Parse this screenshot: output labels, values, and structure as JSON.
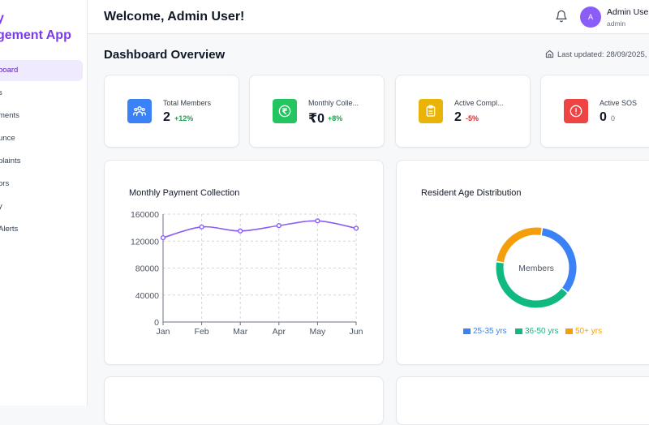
{
  "sidebar": {
    "brand_line1": "y",
    "brand_line2": "gement App",
    "items": [
      {
        "label": "board",
        "active": true
      },
      {
        "label": "s",
        "active": false
      },
      {
        "label": "ments",
        "active": false
      },
      {
        "label": "unce",
        "active": false
      },
      {
        "label": "plaints",
        "active": false
      },
      {
        "label": "ors",
        "active": false
      },
      {
        "label": "y",
        "active": false
      },
      {
        "label": "Alerts",
        "active": false
      }
    ]
  },
  "header": {
    "welcome": "Welcome, Admin User!",
    "avatar_initial": "A",
    "user_name": "Admin User",
    "user_role": "admin"
  },
  "dashboard": {
    "title": "Dashboard Overview",
    "last_updated": "Last updated: 28/09/2025,"
  },
  "stats": [
    {
      "label": "Total Members",
      "value": "2",
      "change": "+12%",
      "icon": "users-icon",
      "color": "#3b82f6",
      "change_color": "#16a34a"
    },
    {
      "label": "Monthly Colle...",
      "value": "₹0",
      "change": "+8%",
      "icon": "rupee-icon",
      "color": "#22c55e",
      "change_color": "#16a34a"
    },
    {
      "label": "Active Compl...",
      "value": "2",
      "change": "-5%",
      "icon": "clipboard-icon",
      "color": "#eab308",
      "change_color": "#dc2626"
    },
    {
      "label": "Active SOS",
      "value": "0",
      "change": "0",
      "icon": "alert-circle-icon",
      "color": "#ef4444",
      "change_color": "#6b7280"
    }
  ],
  "chart_data": [
    {
      "type": "line",
      "title": "Monthly Payment Collection",
      "categories": [
        "Jan",
        "Feb",
        "Mar",
        "Apr",
        "May",
        "Jun"
      ],
      "values": [
        125000,
        141000,
        135000,
        143000,
        150000,
        139000
      ],
      "ylim": [
        0,
        160000
      ],
      "yticks": [
        0,
        40000,
        80000,
        120000,
        160000
      ],
      "grid": true,
      "color": "#8b5cf6"
    },
    {
      "type": "pie",
      "title": "Resident Age Distribution",
      "center_label": "Members",
      "categories": [
        "25-35 yrs",
        "36-50 yrs",
        "50+ yrs"
      ],
      "values": [
        33.3,
        41.7,
        25.0
      ],
      "colors": [
        "#3b82f6",
        "#10b981",
        "#f59e0b"
      ],
      "legend": "bottom"
    }
  ]
}
